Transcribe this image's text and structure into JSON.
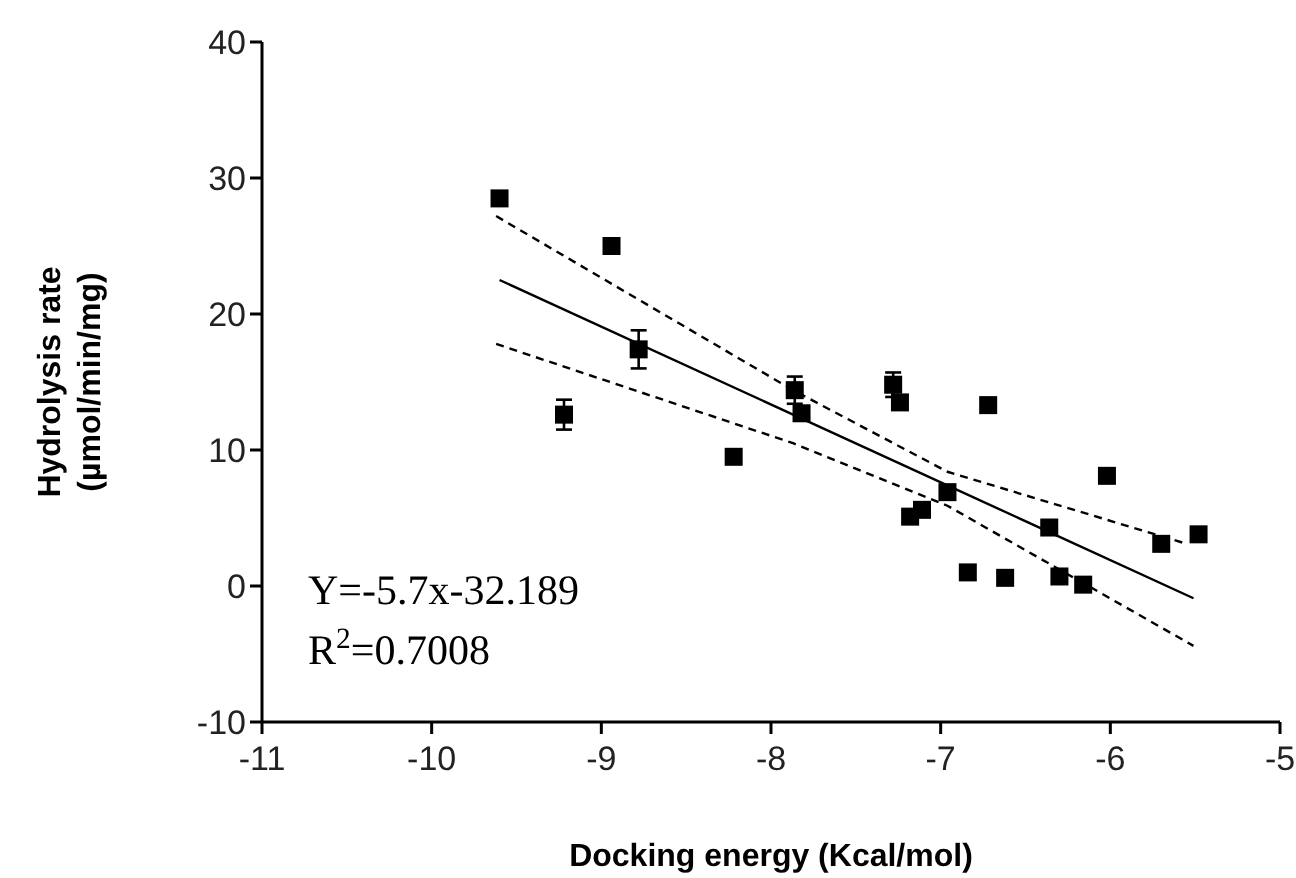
{
  "chart_data": {
    "type": "scatter",
    "xlabel": "Docking energy (Kcal/mol)",
    "ylabel": "Hydrolysis rate\n(µmol/min/mg)",
    "xlim": [
      -11,
      -5
    ],
    "xticks": [
      -11,
      -10,
      -9,
      -8,
      -7,
      -6,
      -5
    ],
    "ylim": [
      -10,
      40
    ],
    "yticks": [
      -10,
      0,
      10,
      20,
      30,
      40
    ],
    "grid": false,
    "annotations": [
      "Y=-5.7x-32.189",
      "R$^{2}$=0.7008"
    ],
    "series": [
      {
        "color": "#000000",
        "marker": "square",
        "x": [
          -9.6,
          -8.94,
          -8.78,
          -9.22,
          -8.22,
          -7.86,
          -7.82,
          -7.28,
          -7.24,
          -6.72,
          -7.18,
          -7.11,
          -6.96,
          -6.84,
          -6.62,
          -6.36,
          -6.3,
          -6.16,
          -6.02,
          -5.7,
          -5.48
        ],
        "values": [
          28.5,
          25.0,
          17.4,
          12.6,
          9.5,
          14.4,
          12.7,
          14.8,
          13.5,
          13.3,
          5.1,
          5.6,
          6.9,
          1.0,
          0.6,
          4.3,
          0.7,
          0.1,
          8.1,
          3.1,
          3.8
        ],
        "errors": [
          null,
          null,
          1.4,
          1.1,
          null,
          1.0,
          null,
          0.9,
          null,
          null,
          null,
          null,
          null,
          null,
          null,
          null,
          null,
          null,
          null,
          null,
          null
        ]
      },
      {
        "type": "line",
        "color": "#000000",
        "line_style": "solid",
        "marker": "none",
        "x": [
          -9.6,
          -5.51
        ],
        "values": [
          22.5,
          -0.9
        ]
      },
      {
        "type": "line",
        "color": "#000000",
        "line_style": "dashed",
        "marker": "none",
        "x": [
          -9.62,
          -7.87,
          -6.96,
          -5.55
        ],
        "values": [
          27.2,
          14.4,
          8.4,
          3.1
        ]
      },
      {
        "type": "line",
        "color": "#000000",
        "line_style": "dashed",
        "marker": "none",
        "x": [
          -9.62,
          -7.87,
          -6.96,
          -5.51
        ],
        "values": [
          17.8,
          10.5,
          5.9,
          -4.4
        ]
      }
    ]
  }
}
